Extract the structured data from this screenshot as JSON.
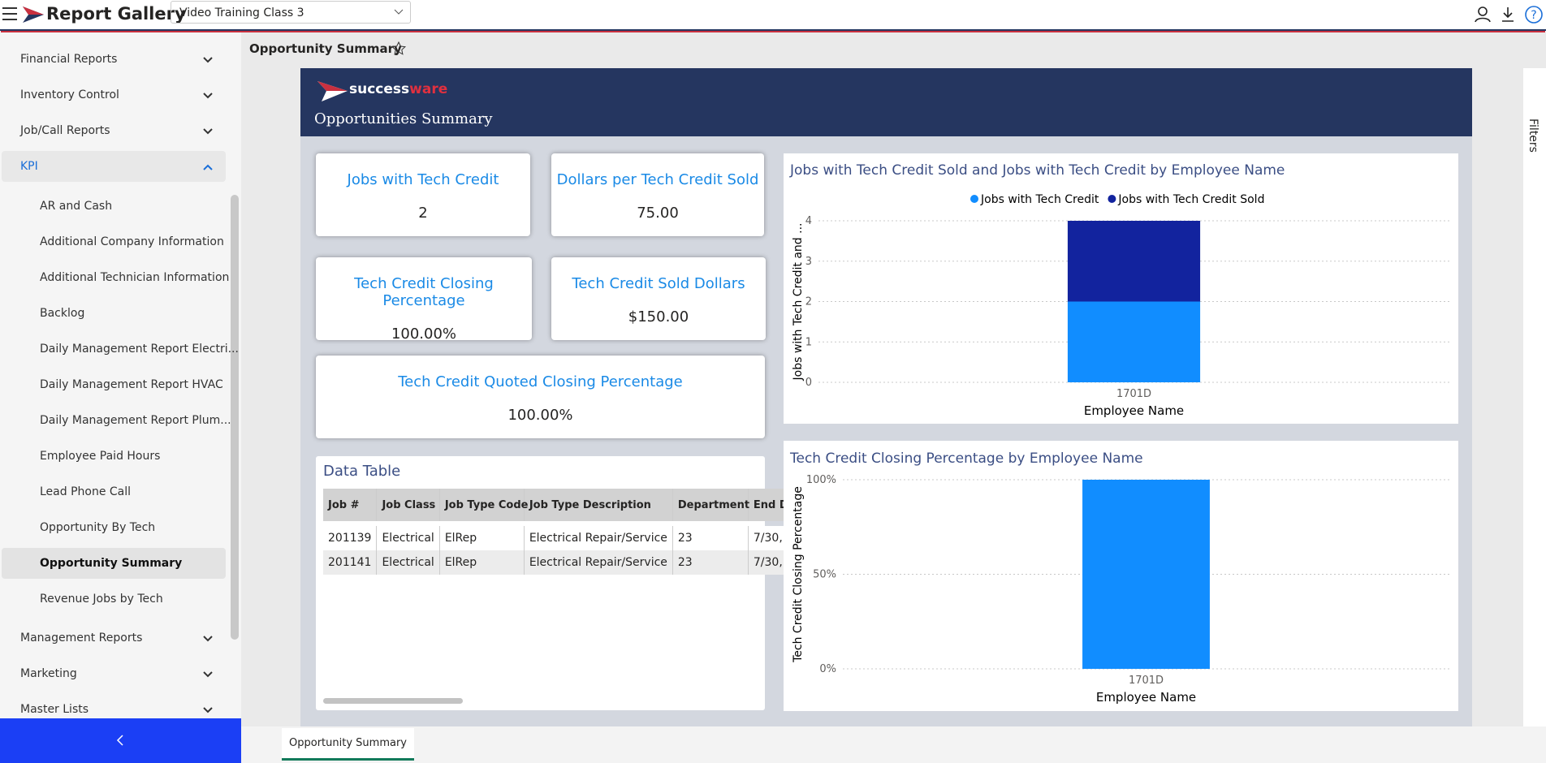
{
  "header": {
    "app_title": "Report Gallery",
    "dataset": "Video Training Class 3"
  },
  "sidebar": {
    "top_sections": [
      "Financial Reports",
      "Inventory Control",
      "Job/Call Reports"
    ],
    "open_section": "KPI",
    "open_items": [
      "AR and Cash",
      "Additional Company Information",
      "Additional Technician Information",
      "Backlog",
      "Daily Management Report Electri...",
      "Daily Management Report HVAC",
      "Daily Management Report Plum...",
      "Employee Paid Hours",
      "Lead Phone Call",
      "Opportunity By Tech",
      "Opportunity Summary",
      "Revenue Jobs by Tech"
    ],
    "bottom_sections": [
      "Management Reports",
      "Marketing",
      "Master Lists"
    ]
  },
  "page_title": "Opportunity Summary",
  "report": {
    "brand_a": "success",
    "brand_b": "ware",
    "title": "Opportunities Summary"
  },
  "cards": [
    {
      "label": "Jobs with Tech Credit",
      "value": "2"
    },
    {
      "label": "Dollars per Tech Credit Sold",
      "value": "75.00"
    },
    {
      "label": "Tech Credit Closing Percentage",
      "value": "100.00%"
    },
    {
      "label": "Tech Credit Sold Dollars",
      "value": "$150.00"
    },
    {
      "label": "Tech Credit Quoted Closing Percentage",
      "value": "100.00%"
    }
  ],
  "table": {
    "title": "Data Table",
    "columns": [
      "Job #",
      "Job Class",
      "Job Type Code",
      "Job Type Description",
      "Department",
      "End D"
    ],
    "rows": [
      [
        "201139",
        "Electrical",
        "ElRep",
        "Electrical Repair/Service",
        "23",
        "7/30,"
      ],
      [
        "201141",
        "Electrical",
        "ElRep",
        "Electrical Repair/Service",
        "23",
        "7/30,"
      ]
    ]
  },
  "chart_data": [
    {
      "type": "bar",
      "stacked": true,
      "title": "Jobs with Tech Credit Sold and Jobs with Tech Credit by Employee Name",
      "x_label": "Employee Name",
      "y_label": "Jobs with Tech Credit and ...",
      "categories": [
        "1701D"
      ],
      "series": [
        {
          "name": "Jobs with Tech Credit",
          "color": "#118dff",
          "values": [
            2
          ]
        },
        {
          "name": "Jobs with Tech Credit Sold",
          "color": "#12239e",
          "values": [
            2
          ]
        }
      ],
      "ylim": [
        0,
        4
      ],
      "yticks": [
        0,
        1,
        2,
        3,
        4
      ],
      "grid": true,
      "legend": "top"
    },
    {
      "type": "bar",
      "title": "Tech Credit Closing Percentage by Employee Name",
      "x_label": "Employee Name",
      "y_label": "Tech Credit Closing Percentage",
      "categories": [
        "1701D"
      ],
      "color": "#118dff",
      "values": [
        100
      ],
      "ylim": [
        0,
        100
      ],
      "yticks": [
        {
          "value": 0,
          "label": "0%"
        },
        {
          "value": 50,
          "label": "50%"
        },
        {
          "value": 100,
          "label": "100%"
        }
      ],
      "grid": true
    }
  ],
  "tab": "Opportunity Summary",
  "filters_label": "Filters"
}
